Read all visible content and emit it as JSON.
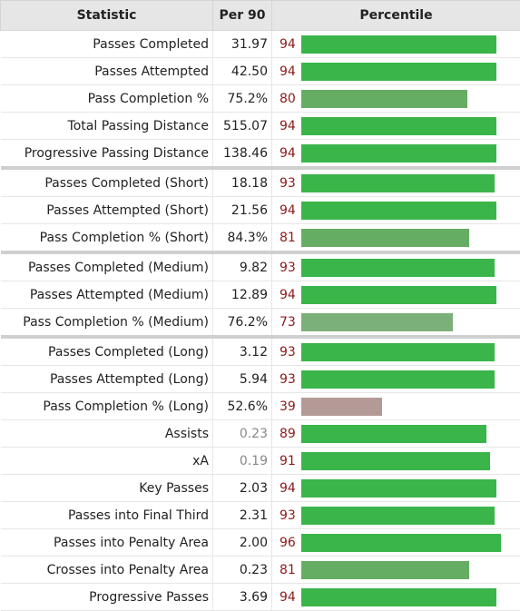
{
  "table": {
    "headers": {
      "statistic": "Statistic",
      "per90": "Per 90",
      "percentile": "Percentile"
    },
    "rows": [
      {
        "stat": "Passes Completed",
        "per90": "31.97",
        "pct": 94,
        "color": "#3ab54a",
        "muted": false,
        "sep": false
      },
      {
        "stat": "Passes Attempted",
        "per90": "42.50",
        "pct": 94,
        "color": "#3ab54a",
        "muted": false,
        "sep": false
      },
      {
        "stat": "Pass Completion %",
        "per90": "75.2%",
        "pct": 80,
        "color": "#65ad62",
        "muted": false,
        "sep": false
      },
      {
        "stat": "Total Passing Distance",
        "per90": "515.07",
        "pct": 94,
        "color": "#3ab54a",
        "muted": false,
        "sep": false
      },
      {
        "stat": "Progressive Passing Distance",
        "per90": "138.46",
        "pct": 94,
        "color": "#3ab54a",
        "muted": false,
        "sep": false
      },
      {
        "stat": "Passes Completed (Short)",
        "per90": "18.18",
        "pct": 93,
        "color": "#3ab54a",
        "muted": false,
        "sep": true
      },
      {
        "stat": "Passes Attempted (Short)",
        "per90": "21.56",
        "pct": 94,
        "color": "#3ab54a",
        "muted": false,
        "sep": false
      },
      {
        "stat": "Pass Completion % (Short)",
        "per90": "84.3%",
        "pct": 81,
        "color": "#65ad62",
        "muted": false,
        "sep": false
      },
      {
        "stat": "Passes Completed (Medium)",
        "per90": "9.82",
        "pct": 93,
        "color": "#3ab54a",
        "muted": false,
        "sep": true
      },
      {
        "stat": "Passes Attempted (Medium)",
        "per90": "12.89",
        "pct": 94,
        "color": "#3ab54a",
        "muted": false,
        "sep": false
      },
      {
        "stat": "Pass Completion % (Medium)",
        "per90": "76.2%",
        "pct": 73,
        "color": "#7cb07a",
        "muted": false,
        "sep": false
      },
      {
        "stat": "Passes Completed (Long)",
        "per90": "3.12",
        "pct": 93,
        "color": "#3ab54a",
        "muted": false,
        "sep": true
      },
      {
        "stat": "Passes Attempted (Long)",
        "per90": "5.94",
        "pct": 93,
        "color": "#3ab54a",
        "muted": false,
        "sep": false
      },
      {
        "stat": "Pass Completion % (Long)",
        "per90": "52.6%",
        "pct": 39,
        "color": "#b49a97",
        "muted": false,
        "sep": false
      },
      {
        "stat": "Assists",
        "per90": "0.23",
        "pct": 89,
        "color": "#3ab54a",
        "muted": true,
        "sep": false
      },
      {
        "stat": "xA",
        "per90": "0.19",
        "pct": 91,
        "color": "#3ab54a",
        "muted": true,
        "sep": false
      },
      {
        "stat": "Key Passes",
        "per90": "2.03",
        "pct": 94,
        "color": "#3ab54a",
        "muted": false,
        "sep": false
      },
      {
        "stat": "Passes into Final Third",
        "per90": "2.31",
        "pct": 93,
        "color": "#3ab54a",
        "muted": false,
        "sep": false
      },
      {
        "stat": "Passes into Penalty Area",
        "per90": "2.00",
        "pct": 96,
        "color": "#3ab54a",
        "muted": false,
        "sep": false
      },
      {
        "stat": "Crosses into Penalty Area",
        "per90": "0.23",
        "pct": 81,
        "color": "#65ad62",
        "muted": false,
        "sep": false
      },
      {
        "stat": "Progressive Passes",
        "per90": "3.69",
        "pct": 94,
        "color": "#3ab54a",
        "muted": false,
        "sep": false
      }
    ]
  }
}
